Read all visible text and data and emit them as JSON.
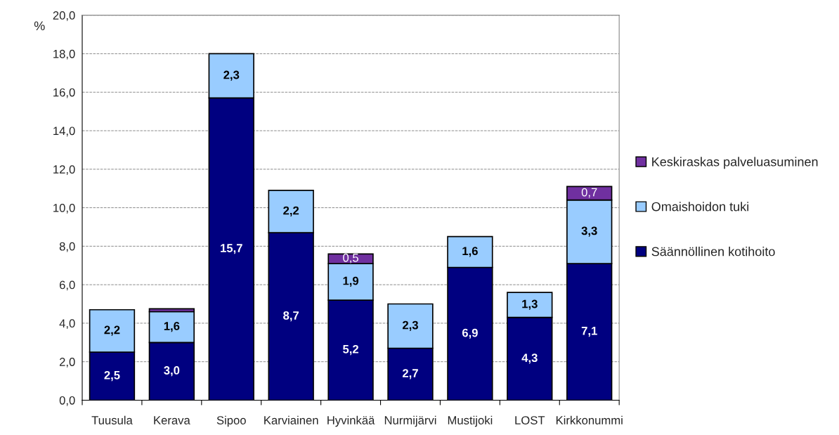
{
  "chart_data": {
    "type": "bar",
    "stacked": true,
    "ylabel": "%",
    "categories": [
      "Tuusula",
      "Kerava",
      "Sipoo",
      "Karviainen",
      "Hyvinkää",
      "Nurmijärvi",
      "Mustijoki",
      "LOST",
      "Kirkkonummi"
    ],
    "series": [
      {
        "name": "Säännöllinen kotihoito",
        "color": "#000080",
        "values": [
          2.5,
          3.0,
          15.7,
          8.7,
          5.2,
          2.7,
          6.9,
          4.3,
          7.1
        ],
        "value_labels": [
          "2,5",
          "3,0",
          "15,7",
          "8,7",
          "5,2",
          "2,7",
          "6,9",
          "4,3",
          "7,1"
        ]
      },
      {
        "name": "Omaishoidon tuki",
        "color": "#99ccff",
        "values": [
          2.2,
          1.6,
          2.3,
          2.2,
          1.9,
          2.3,
          1.6,
          1.3,
          3.3
        ],
        "value_labels": [
          "2,2",
          "1,6",
          "2,3",
          "2,2",
          "1,9",
          "2,3",
          "1,6",
          "1,3",
          "3,3"
        ]
      },
      {
        "name": "Keskiraskas palveluasuminen",
        "color": "#7030a0",
        "values": [
          null,
          0.15,
          null,
          null,
          0.5,
          null,
          null,
          null,
          0.7
        ],
        "value_labels": [
          null,
          null,
          null,
          null,
          "0,5",
          null,
          null,
          null,
          "0,7"
        ]
      }
    ],
    "ylim": [
      0,
      20
    ],
    "yticks": [
      {
        "value": 0,
        "label": "0,0"
      },
      {
        "value": 2,
        "label": "2,0"
      },
      {
        "value": 4,
        "label": "4,0"
      },
      {
        "value": 6,
        "label": "6,0"
      },
      {
        "value": 8,
        "label": "8,0"
      },
      {
        "value": 10,
        "label": "10,0"
      },
      {
        "value": 12,
        "label": "12,0"
      },
      {
        "value": 14,
        "label": "14,0"
      },
      {
        "value": 16,
        "label": "16,0"
      },
      {
        "value": 18,
        "label": "18,0"
      },
      {
        "value": 20,
        "label": "20,0"
      }
    ],
    "grid": "y",
    "legend": "right"
  }
}
